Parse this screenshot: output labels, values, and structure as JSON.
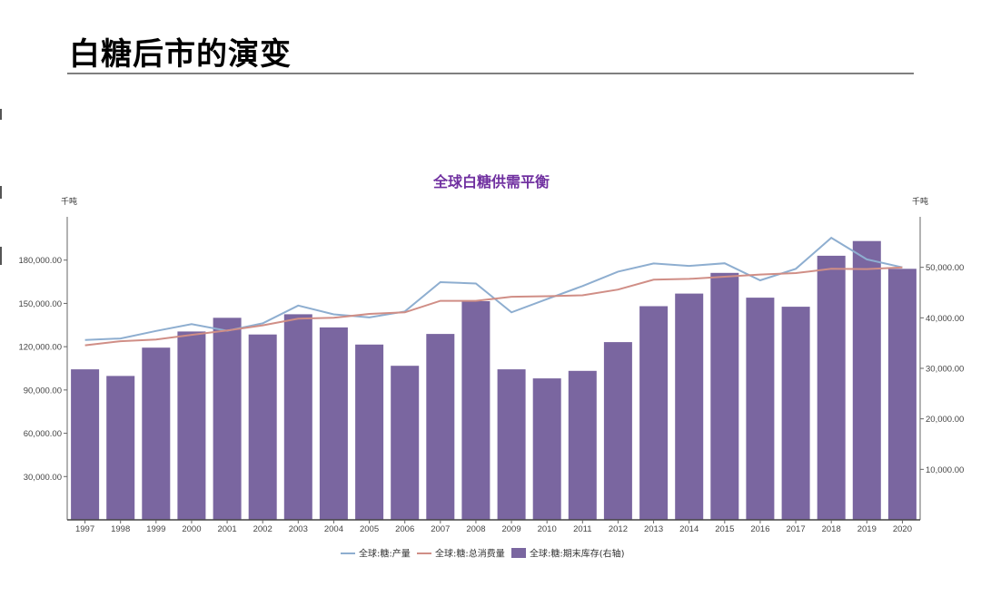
{
  "header": {
    "title": "白糖后市的演变"
  },
  "colors": {
    "production": "#8eaed0",
    "consumption": "#d08e86",
    "stocks": "#7a66a0"
  },
  "chart_data": {
    "type": "bar",
    "title": "全球白糖供需平衡",
    "ylabel_left": "千吨",
    "ylabel_right": "千吨",
    "left_ylim": [
      0,
      210000
    ],
    "right_ylim": [
      0,
      60000
    ],
    "left_ticks": [
      "30,000.00",
      "60,000.00",
      "90,000.00",
      "120,000.00",
      "150,000.00",
      "180,000.00"
    ],
    "left_tick_values": [
      30000,
      60000,
      90000,
      120000,
      150000,
      180000
    ],
    "right_ticks": [
      "10,000.00",
      "20,000.00",
      "30,000.00",
      "40,000.00",
      "50,000.00"
    ],
    "right_tick_values": [
      10000,
      20000,
      30000,
      40000,
      50000
    ],
    "categories": [
      "1997",
      "1998",
      "1999",
      "2000",
      "2001",
      "2002",
      "2003",
      "2004",
      "2005",
      "2006",
      "2007",
      "2008",
      "2009",
      "2010",
      "2011",
      "2012",
      "2013",
      "2014",
      "2015",
      "2016",
      "2017",
      "2018",
      "2019",
      "2020"
    ],
    "series": [
      {
        "name": "全球:糖:产量",
        "type": "line",
        "axis": "left",
        "values": [
          124700,
          125700,
          130900,
          135600,
          131000,
          136200,
          148500,
          142400,
          140300,
          144400,
          164700,
          163800,
          143800,
          153000,
          162000,
          172000,
          177700,
          176000,
          177800,
          166000,
          174000,
          195500,
          180500,
          175000
        ]
      },
      {
        "name": "全球:糖:总消费量",
        "type": "line",
        "axis": "left",
        "values": [
          121000,
          123800,
          125000,
          128200,
          131200,
          134800,
          139400,
          140000,
          142700,
          143800,
          151800,
          151800,
          154600,
          155000,
          155600,
          159600,
          166400,
          167000,
          168500,
          170000,
          171000,
          174000,
          173800,
          175000
        ]
      },
      {
        "name": "全球:糖:期末库存(右轴)",
        "type": "bar",
        "axis": "right",
        "values": [
          29800,
          28500,
          34100,
          37300,
          40000,
          36700,
          40700,
          38100,
          34700,
          30500,
          36800,
          43300,
          29800,
          28000,
          29500,
          35200,
          42300,
          44800,
          48900,
          44000,
          42200,
          52300,
          55200,
          49700
        ]
      }
    ],
    "legend_position": "bottom",
    "grid": false
  }
}
